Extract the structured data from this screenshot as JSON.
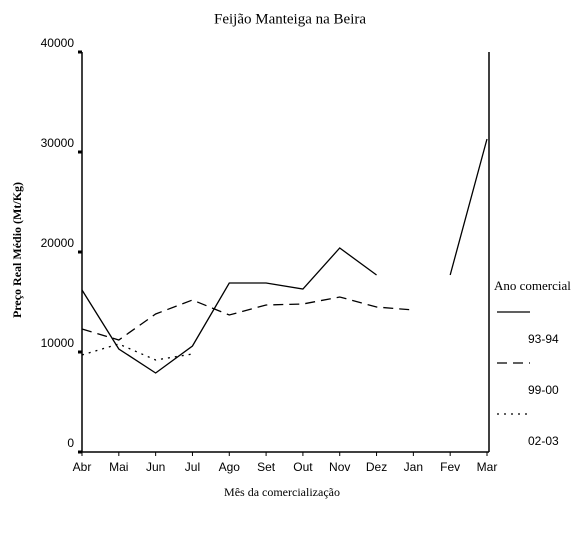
{
  "chart_data": {
    "type": "line",
    "title": "Feijão Manteiga na Beira",
    "x_label": "Mês da comercialização",
    "y_label": "Preço Real Médio (Mt/Kg)",
    "categories": [
      "Abr",
      "Mai",
      "Jun",
      "Jul",
      "Ago",
      "Set",
      "Out",
      "Nov",
      "Dez",
      "Jan",
      "Fev",
      "Mar"
    ],
    "series": [
      {
        "name": "93-94",
        "color": "#000000",
        "dash": "solid",
        "values": [
          16200,
          10300,
          7900,
          10600,
          16900,
          16900,
          16300,
          20400,
          17700,
          null,
          17700,
          31300
        ]
      },
      {
        "name": "99-00",
        "color": "#000000",
        "dash": "dashed",
        "values": [
          12300,
          11200,
          13800,
          15200,
          13700,
          14700,
          14800,
          15500,
          14500,
          14200,
          null,
          null
        ]
      },
      {
        "name": "02-03",
        "color": "#000000",
        "dash": "dotted",
        "values": [
          9700,
          10800,
          9200,
          9800,
          null,
          null,
          null,
          null,
          null,
          null,
          null,
          null
        ]
      }
    ],
    "legend_title": "Ano comercial",
    "legend": "right",
    "ylim": [
      0,
      40000
    ],
    "yticks": [
      0,
      10000,
      20000,
      30000,
      40000
    ]
  }
}
